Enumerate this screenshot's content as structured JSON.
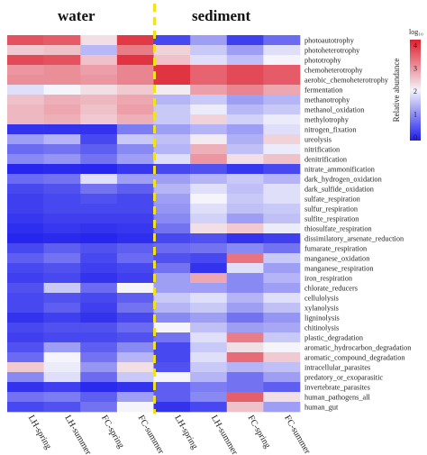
{
  "colors": {
    "low": "#1d1ded",
    "mid": "#f4f4fa",
    "high": "#df1f2e",
    "divider": "#f2e11f"
  },
  "chart_data": {
    "type": "heatmap",
    "groups": [
      {
        "label": "water",
        "columns": [
          0,
          1,
          2,
          3
        ]
      },
      {
        "label": "sediment",
        "columns": [
          4,
          5,
          6,
          7
        ]
      }
    ],
    "columns": [
      "LH-spring",
      "LH-summer",
      "FC-spring",
      "FC-summer",
      "LH-spring",
      "LH-summer",
      "FC-spring",
      "FC-summer"
    ],
    "rows": [
      "photoautotrophy",
      "photoheterotrophy",
      "phototrophy",
      "chemoheterotrophy",
      "aerobic_chemoheterotrophy",
      "fermentation",
      "methanotrophy",
      "methanol_oxidation",
      "methylotrophy",
      "nitrogen_fixation",
      "ureolysis",
      "nitrification",
      "denitrification",
      "nitrate_ammonification",
      "dark_hydrogen_oxidation",
      "dark_sulfide_oxidation",
      "sulfate_respiration",
      "sulfur_respiration",
      "sulfite_respiration",
      "thiosulfate_respiration",
      "dissimilatory_arsenate_reduction",
      "fumarate_respiration",
      "manganese_oxidation",
      "manganese_respiration",
      "iron_respiration",
      "chlorate_reducers",
      "cellulolysis",
      "xylanolysis",
      "ligninolysis",
      "chitinolysis",
      "plastic_degradation",
      "aromatic_hydrocarbon_degradation",
      "aromatic_compound_degradation",
      "intracellular_parasites",
      "predatory_or_exoparasitic",
      "invertebrate_parasites",
      "human_pathogens_all",
      "human_gut"
    ],
    "values": [
      [
        0.88,
        0.86,
        0.55,
        0.94,
        0.1,
        0.3,
        0.08,
        0.18
      ],
      [
        0.6,
        0.62,
        0.36,
        0.78,
        0.58,
        0.4,
        0.3,
        0.45
      ],
      [
        0.9,
        0.88,
        0.62,
        0.95,
        0.62,
        0.45,
        0.38,
        0.5
      ],
      [
        0.72,
        0.74,
        0.7,
        0.76,
        0.95,
        0.84,
        0.9,
        0.86
      ],
      [
        0.74,
        0.74,
        0.72,
        0.76,
        0.95,
        0.84,
        0.9,
        0.86
      ],
      [
        0.45,
        0.5,
        0.55,
        0.6,
        0.52,
        0.7,
        0.76,
        0.68
      ],
      [
        0.62,
        0.66,
        0.64,
        0.68,
        0.35,
        0.4,
        0.3,
        0.35
      ],
      [
        0.64,
        0.68,
        0.62,
        0.7,
        0.4,
        0.48,
        0.36,
        0.4
      ],
      [
        0.64,
        0.66,
        0.6,
        0.66,
        0.4,
        0.58,
        0.42,
        0.48
      ],
      [
        0.05,
        0.05,
        0.05,
        0.22,
        0.3,
        0.35,
        0.3,
        0.45
      ],
      [
        0.3,
        0.35,
        0.1,
        0.4,
        0.38,
        0.52,
        0.34,
        0.58
      ],
      [
        0.18,
        0.2,
        0.15,
        0.25,
        0.35,
        0.66,
        0.38,
        0.48
      ],
      [
        0.25,
        0.28,
        0.2,
        0.3,
        0.45,
        0.72,
        0.55,
        0.62
      ],
      [
        0.02,
        0.03,
        0.02,
        0.06,
        0.1,
        0.12,
        0.06,
        0.1
      ],
      [
        0.18,
        0.2,
        0.45,
        0.3,
        0.3,
        0.35,
        0.4,
        0.35
      ],
      [
        0.1,
        0.12,
        0.2,
        0.15,
        0.35,
        0.45,
        0.38,
        0.45
      ],
      [
        0.08,
        0.1,
        0.12,
        0.1,
        0.3,
        0.5,
        0.4,
        0.45
      ],
      [
        0.08,
        0.1,
        0.1,
        0.1,
        0.28,
        0.45,
        0.38,
        0.4
      ],
      [
        0.06,
        0.08,
        0.08,
        0.08,
        0.25,
        0.42,
        0.3,
        0.38
      ],
      [
        0.04,
        0.06,
        0.05,
        0.06,
        0.2,
        0.55,
        0.6,
        0.48
      ],
      [
        0.02,
        0.03,
        0.02,
        0.04,
        0.1,
        0.12,
        0.05,
        0.08
      ],
      [
        0.1,
        0.15,
        0.12,
        0.15,
        0.18,
        0.2,
        0.25,
        0.2
      ],
      [
        0.15,
        0.2,
        0.1,
        0.18,
        0.12,
        0.1,
        0.8,
        0.4
      ],
      [
        0.1,
        0.12,
        0.08,
        0.1,
        0.2,
        0.05,
        0.45,
        0.3
      ],
      [
        0.08,
        0.1,
        0.05,
        0.08,
        0.3,
        0.68,
        0.25,
        0.35
      ],
      [
        0.12,
        0.4,
        0.18,
        0.5,
        0.3,
        0.3,
        0.25,
        0.3
      ],
      [
        0.1,
        0.12,
        0.1,
        0.15,
        0.4,
        0.45,
        0.35,
        0.45
      ],
      [
        0.1,
        0.15,
        0.08,
        0.2,
        0.35,
        0.4,
        0.3,
        0.38
      ],
      [
        0.05,
        0.08,
        0.05,
        0.1,
        0.25,
        0.3,
        0.2,
        0.28
      ],
      [
        0.1,
        0.12,
        0.12,
        0.18,
        0.5,
        0.38,
        0.3,
        0.32
      ],
      [
        0.08,
        0.1,
        0.1,
        0.12,
        0.2,
        0.45,
        0.78,
        0.4
      ],
      [
        0.12,
        0.3,
        0.15,
        0.25,
        0.1,
        0.4,
        0.55,
        0.5
      ],
      [
        0.18,
        0.5,
        0.2,
        0.35,
        0.1,
        0.45,
        0.82,
        0.6
      ],
      [
        0.6,
        0.48,
        0.28,
        0.55,
        0.12,
        0.4,
        0.35,
        0.38
      ],
      [
        0.25,
        0.45,
        0.18,
        0.4,
        0.5,
        0.35,
        0.2,
        0.3
      ],
      [
        0.05,
        0.08,
        0.03,
        0.05,
        0.15,
        0.22,
        0.2,
        0.15
      ],
      [
        0.2,
        0.22,
        0.15,
        0.3,
        0.15,
        0.25,
        0.85,
        0.55
      ],
      [
        0.1,
        0.12,
        0.2,
        0.5,
        0.05,
        0.1,
        0.62,
        0.3
      ]
    ],
    "colorbar": {
      "title": "log₁₀",
      "ylabel": "Relative abundance",
      "ticks": [
        "4",
        "3",
        "2",
        "1",
        "0"
      ]
    },
    "ylim": [
      0,
      4
    ]
  }
}
